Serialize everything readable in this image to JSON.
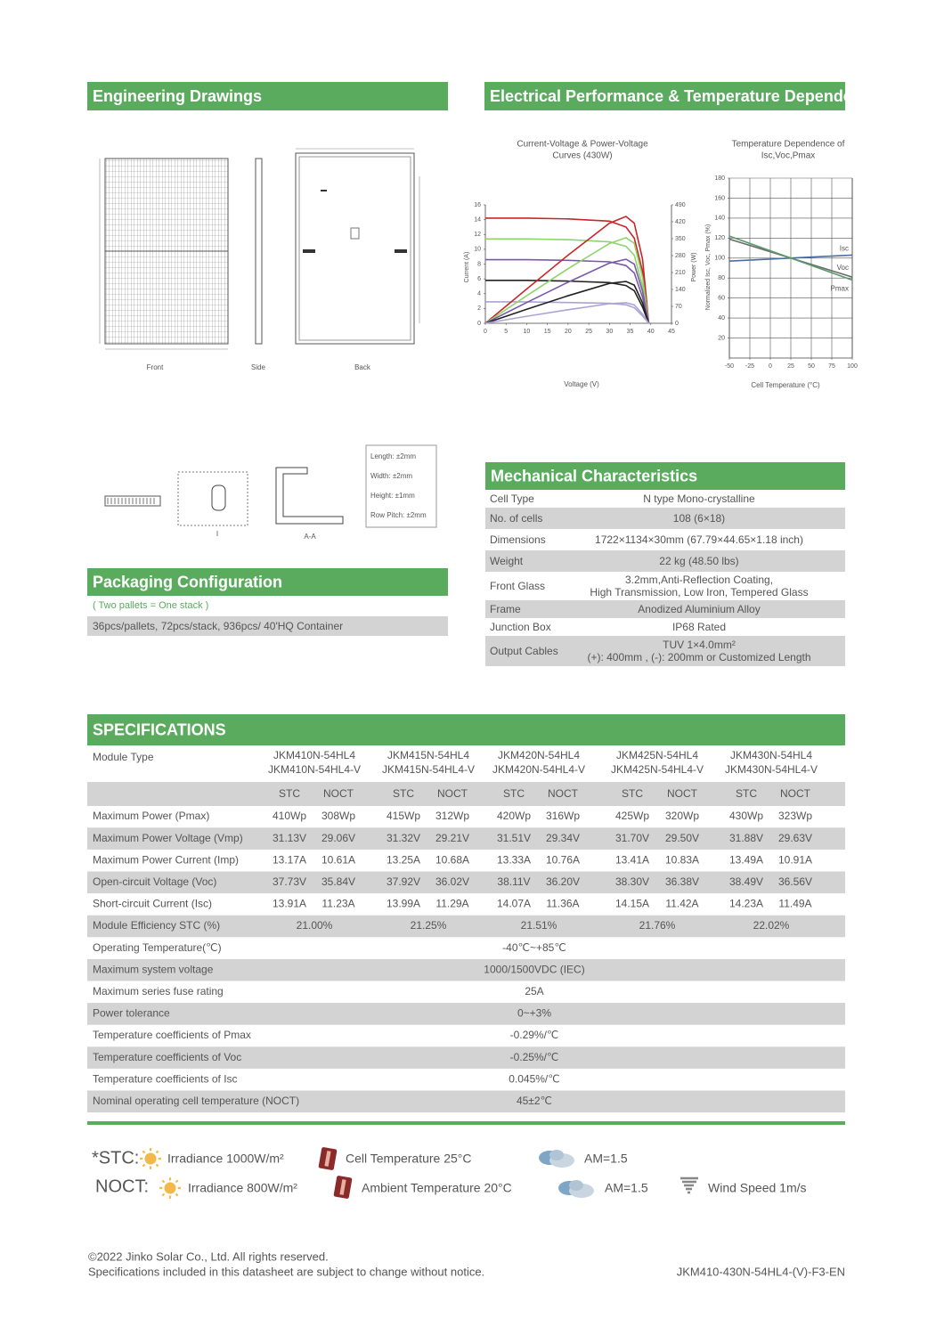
{
  "engineering": {
    "title": "Engineering Drawings",
    "views": [
      "Front",
      "Side",
      "Back"
    ],
    "section_labels": [
      "I",
      "A-A"
    ],
    "tolerances": [
      "Length: ±2mm",
      "Width: ±2mm",
      "Height: ±1mm",
      "Row Pitch: ±2mm"
    ]
  },
  "electrical": {
    "title": "Electrical Performance & Temperature Dependence"
  },
  "chart_data": [
    {
      "type": "line",
      "title": [
        "Current-Voltage & Power-Voltage",
        "Curves (430W)"
      ],
      "x_label": "Voltage (V)",
      "y_label": "Current (A)",
      "y2_label": "Power (W)",
      "x": [
        0,
        10,
        20,
        30,
        34,
        36,
        38,
        39.5
      ],
      "xlim": [
        0,
        45
      ],
      "xticks": [
        0,
        5,
        10,
        15,
        20,
        25,
        30,
        35,
        40,
        45
      ],
      "ylim": [
        0,
        16
      ],
      "yticks": [
        0,
        2,
        4,
        6,
        8,
        10,
        12,
        14,
        16
      ],
      "y2lim": [
        0,
        490
      ],
      "y2ticks": [
        0,
        70,
        140,
        210,
        280,
        350,
        420,
        490
      ],
      "grid": false,
      "series": [
        {
          "color": "#c62828",
          "values": [
            14.2,
            14.2,
            14.1,
            13.8,
            13.0,
            11.5,
            7,
            0
          ]
        },
        {
          "color": "#8fd46a",
          "values": [
            11.4,
            11.4,
            11.3,
            11.0,
            10.4,
            9.2,
            5,
            0
          ]
        },
        {
          "color": "#7b5aa6",
          "values": [
            8.6,
            8.6,
            8.5,
            8.3,
            7.8,
            6.8,
            3.5,
            0
          ]
        },
        {
          "color": "#222222",
          "values": [
            5.8,
            5.8,
            5.7,
            5.5,
            5.1,
            4.4,
            2.2,
            0
          ]
        },
        {
          "color": "#aaa4d6",
          "values": [
            2.9,
            2.9,
            2.8,
            2.7,
            2.5,
            2.1,
            1,
            0
          ]
        },
        {
          "color": "#c62828",
          "axis": "y2",
          "values": [
            0,
            142,
            282,
            414,
            442,
            414,
            266,
            0
          ]
        },
        {
          "color": "#8fd46a",
          "axis": "y2",
          "values": [
            0,
            114,
            226,
            330,
            354,
            331,
            190,
            0
          ]
        },
        {
          "color": "#7b5aa6",
          "axis": "y2",
          "values": [
            0,
            86,
            170,
            249,
            265,
            245,
            133,
            0
          ]
        },
        {
          "color": "#222222",
          "axis": "y2",
          "values": [
            0,
            58,
            114,
            165,
            173,
            158,
            84,
            0
          ]
        },
        {
          "color": "#aaa4d6",
          "axis": "y2",
          "values": [
            0,
            29,
            56,
            81,
            85,
            76,
            38,
            0
          ]
        }
      ]
    },
    {
      "type": "line",
      "title": [
        "Temperature Dependence of",
        "Isc,Voc,Pmax"
      ],
      "x_label": "Cell Temperature (°C)",
      "y_label": "Normalized Isc, Voc, Pmax (%)",
      "x": [
        -50,
        100
      ],
      "xlim": [
        -50,
        100
      ],
      "xticks": [
        -50,
        -25,
        0,
        25,
        50,
        75,
        100
      ],
      "ylim": [
        0,
        180
      ],
      "yticks": [
        20,
        40,
        60,
        80,
        100,
        120,
        140,
        160,
        180
      ],
      "grid": true,
      "series": [
        {
          "name": "Isc",
          "color": "#4a6fa5",
          "values": [
            97,
            103
          ]
        },
        {
          "name": "Voc",
          "color": "#6b6b6b",
          "values": [
            119,
            81
          ]
        },
        {
          "name": "Pmax",
          "color": "#5a9a6a",
          "values": [
            122,
            78
          ]
        }
      ]
    }
  ],
  "mechanical": {
    "title": "Mechanical Characteristics",
    "rows": [
      [
        "Cell Type",
        "N type Mono-crystalline"
      ],
      [
        "No. of cells",
        "108 (6×18)"
      ],
      [
        "Dimensions",
        "1722×1134×30mm (67.79×44.65×1.18 inch)"
      ],
      [
        "Weight",
        "22 kg (48.50 lbs)"
      ],
      [
        "Front Glass",
        [
          "3.2mm,Anti-Reflection Coating,",
          "High Transmission, Low Iron, Tempered Glass"
        ]
      ],
      [
        "Frame",
        "Anodized Aluminium Alloy"
      ],
      [
        "Junction Box",
        "IP68 Rated"
      ],
      [
        "Output Cables",
        [
          "TUV 1×4.0mm²",
          "(+): 400mm , (-): 200mm or Customized Length"
        ]
      ]
    ]
  },
  "packaging": {
    "title": "Packaging Configuration",
    "note": "( Two pallets = One stack )",
    "text": "36pcs/pallets, 72pcs/stack, 936pcs/ 40'HQ Container"
  },
  "specifications": {
    "title": "SPECIFICATIONS",
    "module_type_label": "Module Type",
    "module_types": [
      [
        "JKM410N-54HL4",
        "JKM410N-54HL4-V"
      ],
      [
        "JKM415N-54HL4",
        "JKM415N-54HL4-V"
      ],
      [
        "JKM420N-54HL4",
        "JKM420N-54HL4-V"
      ],
      [
        "JKM425N-54HL4",
        "JKM425N-54HL4-V"
      ],
      [
        "JKM430N-54HL4",
        "JKM430N-54HL4-V"
      ]
    ],
    "conditions": [
      "STC",
      "NOCT"
    ],
    "rows": [
      {
        "label": "Maximum Power (Pmax)",
        "values": [
          "410Wp",
          "308Wp",
          "415Wp",
          "312Wp",
          "420Wp",
          "316Wp",
          "425Wp",
          "320Wp",
          "430Wp",
          "323Wp"
        ]
      },
      {
        "label": "Maximum Power Voltage (Vmp)",
        "values": [
          "31.13V",
          "29.06V",
          "31.32V",
          "29.21V",
          "31.51V",
          "29.34V",
          "31.70V",
          "29.50V",
          "31.88V",
          "29.63V"
        ]
      },
      {
        "label": "Maximum Power Current (Imp)",
        "values": [
          "13.17A",
          "10.61A",
          "13.25A",
          "10.68A",
          "13.33A",
          "10.76A",
          "13.41A",
          "10.83A",
          "13.49A",
          "10.91A"
        ]
      },
      {
        "label": "Open-circuit Voltage (Voc)",
        "values": [
          "37.73V",
          "35.84V",
          "37.92V",
          "36.02V",
          "38.11V",
          "36.20V",
          "38.30V",
          "36.38V",
          "38.49V",
          "36.56V"
        ]
      },
      {
        "label": "Short-circuit Current (Isc)",
        "values": [
          "13.91A",
          "11.23A",
          "13.99A",
          "11.29A",
          "14.07A",
          "11.36A",
          "14.15A",
          "11.42A",
          "14.23A",
          "11.49A"
        ]
      },
      {
        "label": "Module Efficiency STC (%)",
        "values": [
          "21.00%",
          "21.25%",
          "21.51%",
          "21.76%",
          "22.02%"
        ]
      },
      {
        "label": "Operating Temperature(℃)",
        "values": [
          "-40℃~+85℃"
        ]
      },
      {
        "label": "Maximum system voltage",
        "values": [
          "1000/1500VDC (IEC)"
        ]
      },
      {
        "label": "Maximum series fuse rating",
        "values": [
          "25A"
        ]
      },
      {
        "label": "Power tolerance",
        "values": [
          "0~+3%"
        ]
      },
      {
        "label": "Temperature coefficients of Pmax",
        "values": [
          "-0.29%/℃"
        ]
      },
      {
        "label": "Temperature coefficients of Voc",
        "values": [
          "-0.25%/℃"
        ]
      },
      {
        "label": "Temperature coefficients of Isc",
        "values": [
          "0.045%/℃"
        ]
      },
      {
        "label": "Nominal operating cell temperature  (NOCT)",
        "values": [
          "45±2℃"
        ]
      }
    ]
  },
  "test_conditions": {
    "stc": {
      "label": "*STC:",
      "items": [
        "Irradiance 1000W/m²",
        "Cell Temperature 25°C",
        "AM=1.5"
      ]
    },
    "noct": {
      "label": "NOCT:",
      "items": [
        "Irradiance 800W/m²",
        "Ambient Temperature 20°C",
        "AM=1.5",
        "Wind Speed 1m/s"
      ]
    }
  },
  "footer": {
    "lines": [
      "©2022 Jinko Solar Co., Ltd. All rights reserved.",
      "Specifications included in this datasheet are subject to change without notice."
    ],
    "code": "JKM410-430N-54HL4-(V)-F3-EN"
  }
}
